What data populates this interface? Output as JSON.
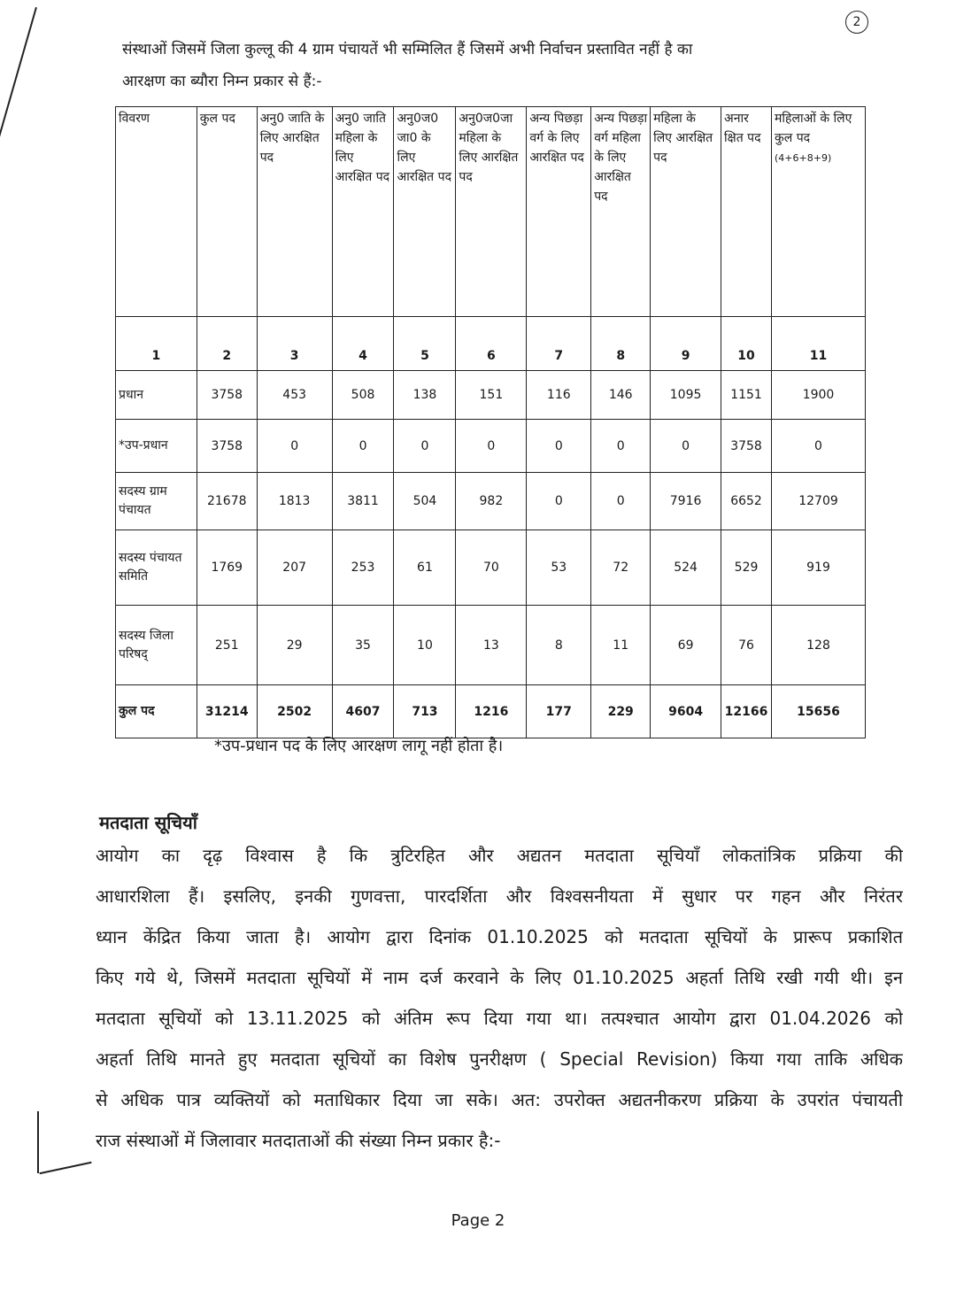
{
  "page_mark": "2",
  "intro_lines": [
    "संस्थाओं जिसमें जिला कुल्लू की 4 ग्राम पंचायतें भी सम्मिलित हैं जिसमें अभी निर्वाचन प्रस्तावित नहीं है का",
    "आरक्षण का ब्यौरा निम्न प्रकार से हैं:-"
  ],
  "table": {
    "headers": [
      "विवरण",
      "कुल पद",
      "अनु0 जाति के लिए आरक्षित पद",
      "अनु0 जाति महिला के लिए आरक्षित पद",
      "अनु0ज0 जा0 के लिए आरक्षित पद",
      "अनु0ज0जा महिला के लिए आरक्षित पद",
      "अन्य पिछड़ा वर्ग के लिए आरक्षित पद",
      "अन्य पिछड़ा वर्ग महिला के लिए आरक्षित पद",
      "महिला के लिए आरक्षित पद",
      "अनार क्षित पद",
      "महिलाओं के लिए कुल पद"
    ],
    "header_note": "(4+6+8+9)",
    "column_numbers": [
      "1",
      "2",
      "3",
      "4",
      "5",
      "6",
      "7",
      "8",
      "9",
      "10",
      "11"
    ],
    "rows": [
      {
        "label": "प्रधान",
        "values": [
          "3758",
          "453",
          "508",
          "138",
          "151",
          "116",
          "146",
          "1095",
          "1151",
          "1900"
        ]
      },
      {
        "label": "*उप-प्रधान",
        "values": [
          "3758",
          "0",
          "0",
          "0",
          "0",
          "0",
          "0",
          "0",
          "3758",
          "0"
        ]
      },
      {
        "label": "सदस्य ग्राम पंचायत",
        "values": [
          "21678",
          "1813",
          "3811",
          "504",
          "982",
          "0",
          "0",
          "7916",
          "6652",
          "12709"
        ]
      },
      {
        "label": "सदस्य पंचायत समिति",
        "values": [
          "1769",
          "207",
          "253",
          "61",
          "70",
          "53",
          "72",
          "524",
          "529",
          "919"
        ]
      },
      {
        "label": "सदस्य जिला परिषद्",
        "values": [
          "251",
          "29",
          "35",
          "10",
          "13",
          "8",
          "11",
          "69",
          "76",
          "128"
        ]
      },
      {
        "label": "कुल पद",
        "values": [
          "31214",
          "2502",
          "4607",
          "713",
          "1216",
          "177",
          "229",
          "9604",
          "12166",
          "15656"
        ]
      }
    ]
  },
  "footnote": "*उप-प्रधान पद के लिए आरक्षण लागू नहीं होता है।",
  "section_heading": "मतदाता सूचियाँ",
  "paragraph_lines": [
    "आयोग का दृढ़ विश्वास है कि त्रुटिरहित और अद्यतन मतदाता सूचियाँ लोकतांत्रिक प्रक्रिया की",
    "आधारशिला हैं। इसलिए, इनकी गुणवत्ता, पारदर्शिता और विश्वसनीयता में सुधार पर गहन और निरंतर",
    "ध्यान केंद्रित किया जाता है। आयोग द्वारा दिनांक 01.10.2025 को मतदाता सूचियों के प्रारूप प्रकाशित",
    "किए गये थे, जिसमें मतदाता सूचियों में नाम दर्ज करवाने के लिए 01.10.2025 अहर्ता तिथि रखी गयी थी। इन",
    "मतदाता सूचियों को 13.11.2025 को अंतिम रूप दिया गया था। तत्पश्चात आयोग द्वारा 01.04.2026 को",
    "अहर्ता तिथि मानते हुए मतदाता सूचियों का विशेष पुनरीक्षण ( Special Revision) किया गया ताकि अधिक",
    "से अधिक पात्र व्यक्तियों को मताधिकार दिया जा सके। अत: उपरोक्त अद्यतनीकरण प्रक्रिया के उपरांत पंचायती",
    "राज संस्थाओं में जिलावार मतदाताओं की संख्या निम्न प्रकार है:-"
  ],
  "page_label": "Page 2"
}
